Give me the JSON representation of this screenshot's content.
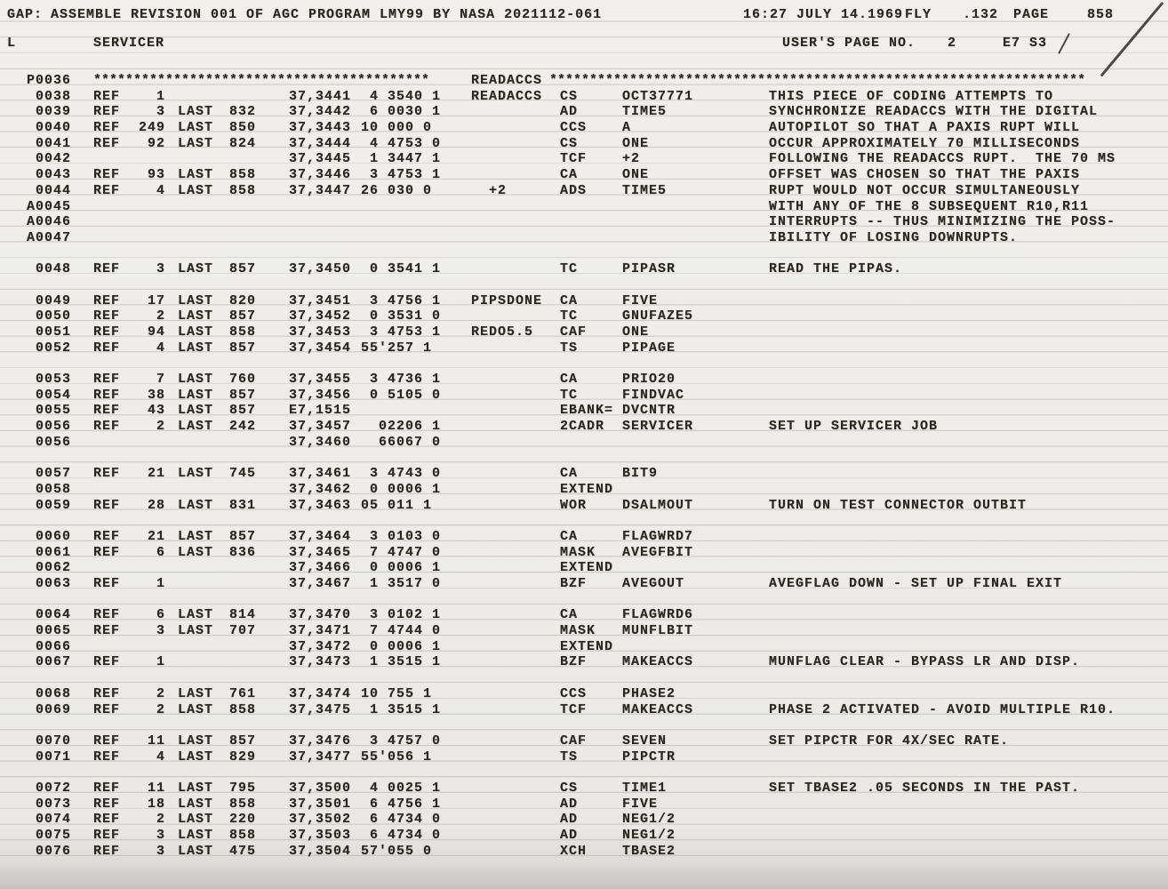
{
  "header": {
    "line1": {
      "gap": "GAP:",
      "title": "ASSEMBLE REVISION 001 OF AGC PROGRAM LMY99 BY NASA 2021112-061",
      "time": "16:27 JULY 14.1969",
      "fly": "FLY",
      "rev": ".132",
      "page_label": "PAGE",
      "page_num": "858"
    },
    "line2": {
      "log_section": "L",
      "section": "SERVICER",
      "user_page_label": "USER'S PAGE NO.",
      "user_page_num": "2",
      "mark": "E7 S3"
    }
  },
  "listing": {
    "rows": [
      {
        "stars": true,
        "n": "P0036",
        "sl": "******************************************",
        "label": "READACCS",
        "sr": "*******************************************************************"
      },
      {
        "n": "0038",
        "ref": "REF",
        "refn": "1",
        "addr": "37,3441",
        "word": " 4 3540 1",
        "label": "READACCS",
        "op": "CS",
        "opd": "OCT37771",
        "cmt": "THIS PIECE OF CODING ATTEMPTS TO"
      },
      {
        "n": "0039",
        "ref": "REF",
        "refn": "3",
        "last": "LAST",
        "lastp": "832",
        "addr": "37,3442",
        "word": " 6 0030 1",
        "op": "AD",
        "opd": "TIME5",
        "cmt": "SYNCHRONIZE READACCS WITH THE DIGITAL"
      },
      {
        "n": "0040",
        "ref": "REF",
        "refn": "249",
        "last": "LAST",
        "lastp": "850",
        "addr": "37,3443",
        "word": "10 000 0",
        "op": "CCS",
        "opd": "A",
        "cmt": "AUTOPILOT SO THAT A PAXIS RUPT WILL"
      },
      {
        "n": "0041",
        "ref": "REF",
        "refn": "92",
        "last": "LAST",
        "lastp": "824",
        "addr": "37,3444",
        "word": " 4 4753 0",
        "op": "CS",
        "opd": "ONE",
        "cmt": "OCCUR APPROXIMATELY 70 MILLISECONDS"
      },
      {
        "n": "0042",
        "addr": "37,3445",
        "word": " 1 3447 1",
        "op": "TCF",
        "opd": "+2",
        "cmt": "FOLLOWING THE READACCS RUPT.  THE 70 MS"
      },
      {
        "n": "0043",
        "ref": "REF",
        "refn": "93",
        "last": "LAST",
        "lastp": "858",
        "addr": "37,3446",
        "word": " 3 4753 1",
        "op": "CA",
        "opd": "ONE",
        "cmt": "OFFSET WAS CHOSEN SO THAT THE PAXIS"
      },
      {
        "n": "0044",
        "ref": "REF",
        "refn": "4",
        "last": "LAST",
        "lastp": "858",
        "addr": "37,3447",
        "word": "26 030 0",
        "label": "  +2",
        "op": "ADS",
        "opd": "TIME5",
        "cmt": "RUPT WOULD NOT OCCUR SIMULTANEOUSLY"
      },
      {
        "n": "A0045",
        "cmt": "WITH ANY OF THE 8 SUBSEQUENT R10,R11"
      },
      {
        "n": "A0046",
        "cmt": "INTERRUPTS -- THUS MINIMIZING THE POSS-"
      },
      {
        "n": "A0047",
        "cmt": "IBILITY OF LOSING DOWNRUPTS."
      },
      {
        "blank": true
      },
      {
        "n": "0048",
        "ref": "REF",
        "refn": "3",
        "last": "LAST",
        "lastp": "857",
        "addr": "37,3450",
        "word": " 0 3541 1",
        "op": "TC",
        "opd": "PIPASR",
        "cmt": "READ THE PIPAS."
      },
      {
        "blank": true
      },
      {
        "n": "0049",
        "ref": "REF",
        "refn": "17",
        "last": "LAST",
        "lastp": "820",
        "addr": "37,3451",
        "word": " 3 4756 1",
        "label": "PIPSDONE",
        "op": "CA",
        "opd": "FIVE"
      },
      {
        "n": "0050",
        "ref": "REF",
        "refn": "2",
        "last": "LAST",
        "lastp": "857",
        "addr": "37,3452",
        "word": " 0 3531 0",
        "op": "TC",
        "opd": "GNUFAZE5"
      },
      {
        "n": "0051",
        "ref": "REF",
        "refn": "94",
        "last": "LAST",
        "lastp": "858",
        "addr": "37,3453",
        "word": " 3 4753 1",
        "label": "REDO5.5",
        "op": "CAF",
        "opd": "ONE"
      },
      {
        "n": "0052",
        "ref": "REF",
        "refn": "4",
        "last": "LAST",
        "lastp": "857",
        "addr": "37,3454",
        "word": "55'257 1",
        "op": "TS",
        "opd": "PIPAGE"
      },
      {
        "blank": true
      },
      {
        "n": "0053",
        "ref": "REF",
        "refn": "7",
        "last": "LAST",
        "lastp": "760",
        "addr": "37,3455",
        "word": " 3 4736 1",
        "op": "CA",
        "opd": "PRIO20"
      },
      {
        "n": "0054",
        "ref": "REF",
        "refn": "38",
        "last": "LAST",
        "lastp": "857",
        "addr": "37,3456",
        "word": " 0 5105 0",
        "op": "TC",
        "opd": "FINDVAC"
      },
      {
        "n": "0055",
        "ref": "REF",
        "refn": "43",
        "last": "LAST",
        "lastp": "857",
        "addr": "E7,1515",
        "op": "EBANK=",
        "opd": "DVCNTR"
      },
      {
        "n": "0056",
        "ref": "REF",
        "refn": "2",
        "last": "LAST",
        "lastp": "242",
        "addr": "37,3457",
        "word": "  02206 1",
        "op": "2CADR",
        "opd": "SERVICER",
        "cmt": "SET UP SERVICER JOB"
      },
      {
        "n": "0056",
        "addr": "37,3460",
        "word": "  66067 0"
      },
      {
        "blank": true
      },
      {
        "n": "0057",
        "ref": "REF",
        "refn": "21",
        "last": "LAST",
        "lastp": "745",
        "addr": "37,3461",
        "word": " 3 4743 0",
        "op": "CA",
        "opd": "BIT9"
      },
      {
        "n": "0058",
        "addr": "37,3462",
        "word": " 0 0006 1",
        "op": "EXTEND"
      },
      {
        "n": "0059",
        "ref": "REF",
        "refn": "28",
        "last": "LAST",
        "lastp": "831",
        "addr": "37,3463",
        "word": "05 011 1",
        "op": "WOR",
        "opd": "DSALMOUT",
        "cmt": "TURN ON TEST CONNECTOR OUTBIT"
      },
      {
        "blank": true
      },
      {
        "n": "0060",
        "ref": "REF",
        "refn": "21",
        "last": "LAST",
        "lastp": "857",
        "addr": "37,3464",
        "word": " 3 0103 0",
        "op": "CA",
        "opd": "FLAGWRD7"
      },
      {
        "n": "0061",
        "ref": "REF",
        "refn": "6",
        "last": "LAST",
        "lastp": "836",
        "addr": "37,3465",
        "word": " 7 4747 0",
        "op": "MASK",
        "opd": "AVEGFBIT"
      },
      {
        "n": "0062",
        "addr": "37,3466",
        "word": " 0 0006 1",
        "op": "EXTEND"
      },
      {
        "n": "0063",
        "ref": "REF",
        "refn": "1",
        "addr": "37,3467",
        "word": " 1 3517 0",
        "op": "BZF",
        "opd": "AVEGOUT",
        "cmt": "AVEGFLAG DOWN - SET UP FINAL EXIT"
      },
      {
        "blank": true
      },
      {
        "n": "0064",
        "ref": "REF",
        "refn": "6",
        "last": "LAST",
        "lastp": "814",
        "addr": "37,3470",
        "word": " 3 0102 1",
        "op": "CA",
        "opd": "FLAGWRD6"
      },
      {
        "n": "0065",
        "ref": "REF",
        "refn": "3",
        "last": "LAST",
        "lastp": "707",
        "addr": "37,3471",
        "word": " 7 4744 0",
        "op": "MASK",
        "opd": "MUNFLBIT"
      },
      {
        "n": "0066",
        "addr": "37,3472",
        "word": " 0 0006 1",
        "op": "EXTEND"
      },
      {
        "n": "0067",
        "ref": "REF",
        "refn": "1",
        "addr": "37,3473",
        "word": " 1 3515 1",
        "op": "BZF",
        "opd": "MAKEACCS",
        "cmt": "MUNFLAG CLEAR - BYPASS LR AND DISP."
      },
      {
        "blank": true
      },
      {
        "n": "0068",
        "ref": "REF",
        "refn": "2",
        "last": "LAST",
        "lastp": "761",
        "addr": "37,3474",
        "word": "10 755 1",
        "op": "CCS",
        "opd": "PHASE2"
      },
      {
        "n": "0069",
        "ref": "REF",
        "refn": "2",
        "last": "LAST",
        "lastp": "858",
        "addr": "37,3475",
        "word": " 1 3515 1",
        "op": "TCF",
        "opd": "MAKEACCS",
        "cmt": "PHASE 2 ACTIVATED - AVOID MULTIPLE R10."
      },
      {
        "blank": true
      },
      {
        "n": "0070",
        "ref": "REF",
        "refn": "11",
        "last": "LAST",
        "lastp": "857",
        "addr": "37,3476",
        "word": " 3 4757 0",
        "op": "CAF",
        "opd": "SEVEN",
        "cmt": "SET PIPCTR FOR 4X/SEC RATE."
      },
      {
        "n": "0071",
        "ref": "REF",
        "refn": "4",
        "last": "LAST",
        "lastp": "829",
        "addr": "37,3477",
        "word": "55'056 1",
        "op": "TS",
        "opd": "PIPCTR"
      },
      {
        "blank": true
      },
      {
        "n": "0072",
        "ref": "REF",
        "refn": "11",
        "last": "LAST",
        "lastp": "795",
        "addr": "37,3500",
        "word": " 4 0025 1",
        "op": "CS",
        "opd": "TIME1",
        "cmt": "SET TBASE2 .05 SECONDS IN THE PAST."
      },
      {
        "n": "0073",
        "ref": "REF",
        "refn": "18",
        "last": "LAST",
        "lastp": "858",
        "addr": "37,3501",
        "word": " 6 4756 1",
        "op": "AD",
        "opd": "FIVE"
      },
      {
        "n": "0074",
        "ref": "REF",
        "refn": "2",
        "last": "LAST",
        "lastp": "220",
        "addr": "37,3502",
        "word": " 6 4734 0",
        "op": "AD",
        "opd": "NEG1/2"
      },
      {
        "n": "0075",
        "ref": "REF",
        "refn": "3",
        "last": "LAST",
        "lastp": "858",
        "addr": "37,3503",
        "word": " 6 4734 0",
        "op": "AD",
        "opd": "NEG1/2"
      },
      {
        "n": "0076",
        "ref": "REF",
        "refn": "3",
        "last": "LAST",
        "lastp": "475",
        "addr": "37,3504",
        "word": "57'055 0",
        "op": "XCH",
        "opd": "TBASE2"
      }
    ]
  }
}
